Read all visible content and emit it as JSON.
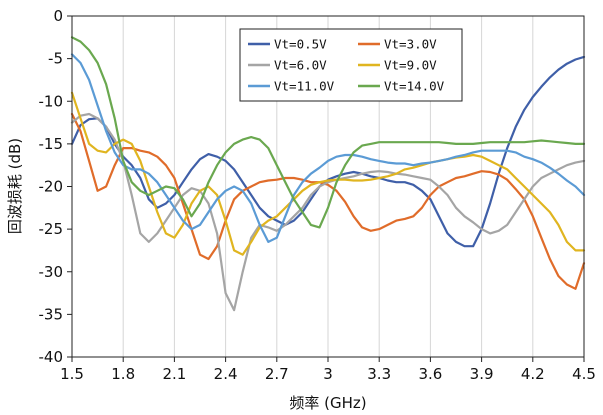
{
  "chart_data": {
    "type": "line",
    "xlabel": "频率 (GHz)",
    "ylabel": "回波损耗 (dB)",
    "xlim": [
      1.5,
      4.5
    ],
    "ylim": [
      -40,
      0
    ],
    "xticks": [
      "1.5",
      "1.8",
      "2.1",
      "2.4",
      "2.7",
      "3",
      "3.3",
      "3.6",
      "3.9",
      "4.2",
      "4.5"
    ],
    "yticks": [
      "0",
      "-5",
      "-10",
      "-15",
      "-20",
      "-25",
      "-30",
      "-35",
      "-40"
    ],
    "grid": "vertical",
    "legend_position": "top-center",
    "legend_columns": 2,
    "series": [
      {
        "name": "Vt=0.5V",
        "color": "#3f5fa8",
        "x": [
          1.5,
          1.55,
          1.6,
          1.65,
          1.7,
          1.75,
          1.8,
          1.85,
          1.9,
          1.95,
          2.0,
          2.05,
          2.1,
          2.15,
          2.2,
          2.25,
          2.3,
          2.35,
          2.4,
          2.45,
          2.5,
          2.55,
          2.6,
          2.65,
          2.7,
          2.75,
          2.8,
          2.85,
          2.9,
          2.95,
          3.0,
          3.05,
          3.1,
          3.15,
          3.2,
          3.25,
          3.3,
          3.35,
          3.4,
          3.45,
          3.5,
          3.55,
          3.6,
          3.65,
          3.7,
          3.75,
          3.8,
          3.85,
          3.9,
          3.95,
          4.0,
          4.05,
          4.1,
          4.15,
          4.2,
          4.25,
          4.3,
          4.35,
          4.4,
          4.45,
          4.5
        ],
        "y": [
          -15,
          -12.8,
          -12.1,
          -12,
          -13,
          -15,
          -16.5,
          -17.5,
          -19,
          -21.5,
          -22.5,
          -22,
          -21,
          -19.5,
          -18,
          -16.8,
          -16.2,
          -16.5,
          -17,
          -18,
          -19.5,
          -21,
          -22.5,
          -23.5,
          -24,
          -24.5,
          -24,
          -23,
          -21.5,
          -20,
          -19.2,
          -18.8,
          -18.5,
          -18.3,
          -18.5,
          -18.8,
          -19,
          -19.3,
          -19.5,
          -19.5,
          -19.8,
          -20.5,
          -21.5,
          -23.5,
          -25.5,
          -26.5,
          -27,
          -27,
          -25,
          -22,
          -18.5,
          -15.5,
          -13,
          -11,
          -9.5,
          -8.3,
          -7.2,
          -6.3,
          -5.6,
          -5.1,
          -4.8
        ]
      },
      {
        "name": "Vt=3.0V",
        "color": "#e06c2a",
        "x": [
          1.5,
          1.55,
          1.6,
          1.65,
          1.7,
          1.75,
          1.8,
          1.85,
          1.9,
          1.95,
          2.0,
          2.05,
          2.1,
          2.15,
          2.2,
          2.25,
          2.3,
          2.35,
          2.4,
          2.45,
          2.5,
          2.55,
          2.6,
          2.65,
          2.7,
          2.75,
          2.8,
          2.85,
          2.9,
          2.95,
          3.0,
          3.05,
          3.1,
          3.15,
          3.2,
          3.25,
          3.3,
          3.35,
          3.4,
          3.45,
          3.5,
          3.55,
          3.6,
          3.65,
          3.7,
          3.75,
          3.8,
          3.85,
          3.9,
          3.95,
          4.0,
          4.05,
          4.1,
          4.15,
          4.2,
          4.25,
          4.3,
          4.35,
          4.4,
          4.45,
          4.5
        ],
        "y": [
          -11.5,
          -13.5,
          -17,
          -20.5,
          -20,
          -17.5,
          -15.5,
          -15.5,
          -15.8,
          -16,
          -16.5,
          -17.5,
          -19,
          -22,
          -25,
          -28,
          -28.5,
          -27,
          -24,
          -21.5,
          -20.5,
          -20,
          -19.5,
          -19.3,
          -19.2,
          -19,
          -19,
          -19.2,
          -19.5,
          -19.5,
          -19.8,
          -20.5,
          -21.8,
          -23.5,
          -24.8,
          -25.2,
          -25,
          -24.5,
          -24,
          -23.8,
          -23.5,
          -22.5,
          -21,
          -20,
          -19.5,
          -19,
          -18.8,
          -18.5,
          -18.2,
          -18.3,
          -18.6,
          -19.2,
          -20.3,
          -21.5,
          -23.5,
          -26,
          -28.5,
          -30.5,
          -31.5,
          -32,
          -29
        ]
      },
      {
        "name": "Vt=6.0V",
        "color": "#a5a5a5",
        "x": [
          1.5,
          1.55,
          1.6,
          1.65,
          1.7,
          1.75,
          1.8,
          1.85,
          1.9,
          1.95,
          2.0,
          2.05,
          2.1,
          2.15,
          2.2,
          2.25,
          2.3,
          2.35,
          2.4,
          2.45,
          2.5,
          2.55,
          2.6,
          2.65,
          2.7,
          2.75,
          2.8,
          2.85,
          2.9,
          2.95,
          3.0,
          3.05,
          3.1,
          3.15,
          3.2,
          3.25,
          3.3,
          3.35,
          3.4,
          3.45,
          3.5,
          3.55,
          3.6,
          3.65,
          3.7,
          3.75,
          3.8,
          3.85,
          3.9,
          3.95,
          4.0,
          4.05,
          4.1,
          4.15,
          4.2,
          4.25,
          4.3,
          4.35,
          4.4,
          4.45,
          4.5
        ],
        "y": [
          -12.5,
          -11.7,
          -11.5,
          -12,
          -13,
          -14.5,
          -17,
          -21,
          -25.5,
          -26.5,
          -25.5,
          -24,
          -22.5,
          -21,
          -20.2,
          -20.5,
          -22,
          -25.5,
          -32.5,
          -34.5,
          -30,
          -26,
          -24.5,
          -24.8,
          -25.2,
          -24.5,
          -23.5,
          -22.5,
          -21,
          -20,
          -19.5,
          -19.2,
          -19,
          -18.8,
          -18.5,
          -18.3,
          -18.2,
          -18.3,
          -18.5,
          -18.6,
          -18.8,
          -19,
          -19.2,
          -20,
          -21,
          -22.5,
          -23.5,
          -24.2,
          -25,
          -25.5,
          -25.2,
          -24.5,
          -23,
          -21.5,
          -20,
          -19,
          -18.5,
          -18,
          -17.5,
          -17.2,
          -17
        ]
      },
      {
        "name": "Vt=9.0V",
        "color": "#e0b520",
        "x": [
          1.5,
          1.55,
          1.6,
          1.65,
          1.7,
          1.75,
          1.8,
          1.85,
          1.9,
          1.95,
          2.0,
          2.05,
          2.1,
          2.15,
          2.2,
          2.25,
          2.3,
          2.35,
          2.4,
          2.45,
          2.5,
          2.55,
          2.6,
          2.65,
          2.7,
          2.75,
          2.8,
          2.85,
          2.9,
          2.95,
          3.0,
          3.05,
          3.1,
          3.15,
          3.2,
          3.25,
          3.3,
          3.35,
          3.4,
          3.45,
          3.5,
          3.55,
          3.6,
          3.65,
          3.7,
          3.75,
          3.8,
          3.85,
          3.9,
          3.95,
          4.0,
          4.05,
          4.1,
          4.15,
          4.2,
          4.25,
          4.3,
          4.35,
          4.4,
          4.45,
          4.5
        ],
        "y": [
          -9,
          -12,
          -15,
          -15.8,
          -16,
          -15,
          -14.5,
          -15,
          -17,
          -20,
          -23,
          -25.5,
          -26,
          -24.5,
          -22,
          -20.5,
          -20,
          -21,
          -24,
          -27.5,
          -28,
          -26.5,
          -24.8,
          -24,
          -23.5,
          -22.5,
          -21.5,
          -20.5,
          -19.8,
          -19.5,
          -19.3,
          -19.2,
          -19.2,
          -19.3,
          -19.3,
          -19.2,
          -19,
          -18.8,
          -18.5,
          -18,
          -17.8,
          -17.5,
          -17.2,
          -17,
          -16.8,
          -16.6,
          -16.5,
          -16.3,
          -16.5,
          -17,
          -17.5,
          -18,
          -19,
          -20,
          -21,
          -22,
          -23,
          -24.5,
          -26.5,
          -27.5,
          -27.5
        ]
      },
      {
        "name": "Vt=11.0V",
        "color": "#5b9bd5",
        "x": [
          1.5,
          1.55,
          1.6,
          1.65,
          1.7,
          1.75,
          1.8,
          1.85,
          1.9,
          1.95,
          2.0,
          2.05,
          2.1,
          2.15,
          2.2,
          2.25,
          2.3,
          2.35,
          2.4,
          2.45,
          2.5,
          2.55,
          2.6,
          2.65,
          2.7,
          2.75,
          2.8,
          2.85,
          2.9,
          2.95,
          3.0,
          3.05,
          3.1,
          3.15,
          3.2,
          3.25,
          3.3,
          3.35,
          3.4,
          3.45,
          3.5,
          3.55,
          3.6,
          3.65,
          3.7,
          3.75,
          3.8,
          3.85,
          3.9,
          3.95,
          4.0,
          4.05,
          4.1,
          4.15,
          4.2,
          4.25,
          4.3,
          4.35,
          4.4,
          4.45,
          4.5
        ],
        "y": [
          -4.5,
          -5.5,
          -7.5,
          -10.5,
          -13.5,
          -16,
          -17.5,
          -18,
          -18,
          -18.5,
          -19.5,
          -21,
          -22.5,
          -24,
          -25,
          -24.5,
          -23,
          -21.5,
          -20.5,
          -20,
          -20.5,
          -22,
          -24.5,
          -26.5,
          -26,
          -23.5,
          -21,
          -19.5,
          -18.5,
          -17.8,
          -17,
          -16.5,
          -16.3,
          -16.3,
          -16.5,
          -16.8,
          -17,
          -17.2,
          -17.3,
          -17.3,
          -17.5,
          -17.3,
          -17.2,
          -17,
          -16.8,
          -16.5,
          -16.3,
          -16,
          -15.8,
          -15.8,
          -15.8,
          -15.8,
          -16,
          -16.5,
          -16.8,
          -17.2,
          -17.8,
          -18.5,
          -19.3,
          -20,
          -21
        ]
      },
      {
        "name": "Vt=14.0V",
        "color": "#6aa84f",
        "x": [
          1.5,
          1.55,
          1.6,
          1.65,
          1.7,
          1.75,
          1.8,
          1.85,
          1.9,
          1.95,
          2.0,
          2.05,
          2.1,
          2.15,
          2.2,
          2.25,
          2.3,
          2.35,
          2.4,
          2.45,
          2.5,
          2.55,
          2.6,
          2.65,
          2.7,
          2.75,
          2.8,
          2.85,
          2.9,
          2.95,
          3.0,
          3.05,
          3.1,
          3.15,
          3.2,
          3.25,
          3.3,
          3.35,
          3.4,
          3.45,
          3.5,
          3.55,
          3.6,
          3.65,
          3.7,
          3.75,
          3.8,
          3.85,
          3.9,
          3.95,
          4.0,
          4.05,
          4.1,
          4.15,
          4.2,
          4.25,
          4.3,
          4.35,
          4.4,
          4.45,
          4.5
        ],
        "y": [
          -2.5,
          -3,
          -4,
          -5.5,
          -8,
          -12,
          -17,
          -19.5,
          -20.5,
          -21,
          -20.5,
          -20,
          -20.2,
          -21.5,
          -23.5,
          -22,
          -19.5,
          -17.5,
          -16,
          -15,
          -14.5,
          -14.2,
          -14.5,
          -15.5,
          -17.5,
          -19.5,
          -21.5,
          -23,
          -24.5,
          -24.8,
          -22.5,
          -19.5,
          -17.5,
          -16,
          -15.2,
          -15,
          -14.8,
          -14.8,
          -14.8,
          -14.8,
          -14.8,
          -14.8,
          -14.8,
          -14.8,
          -14.9,
          -15,
          -15,
          -15,
          -14.9,
          -14.8,
          -14.8,
          -14.8,
          -14.8,
          -14.8,
          -14.7,
          -14.6,
          -14.7,
          -14.8,
          -14.9,
          -15,
          -15
        ]
      }
    ]
  }
}
